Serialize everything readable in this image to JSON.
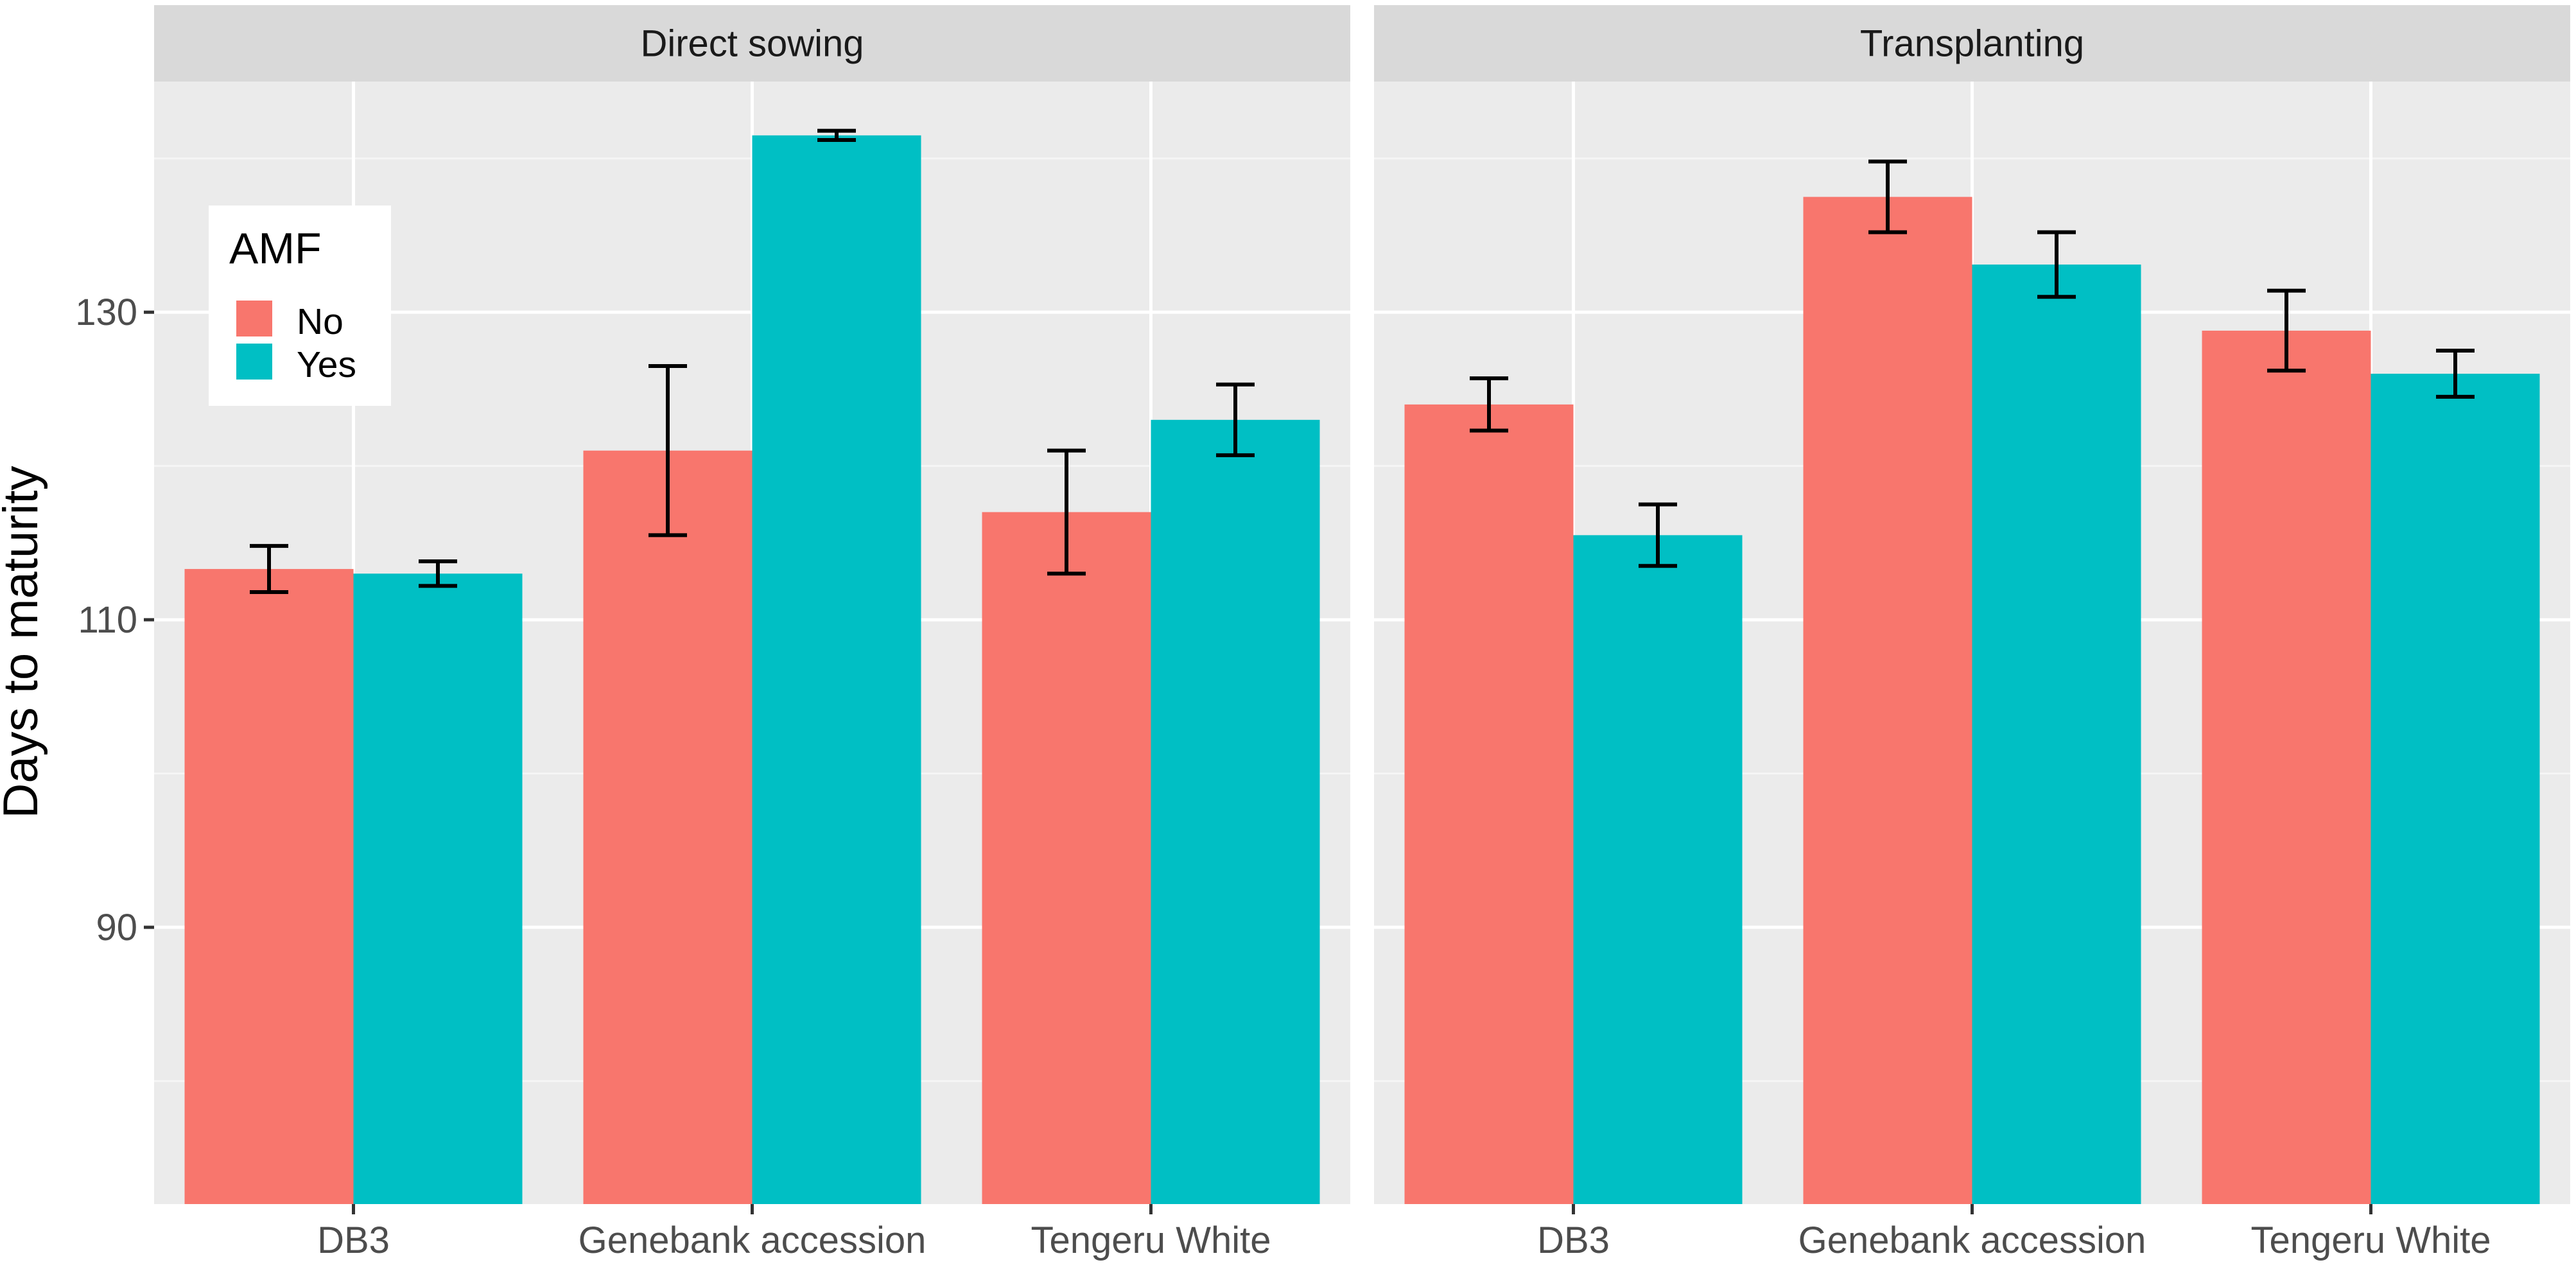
{
  "chart_data": {
    "type": "bar",
    "layout": "faceted",
    "ylabel": "Days to maturity",
    "xlabel": "",
    "ylim": [
      72,
      145
    ],
    "yticks": [
      90,
      110,
      130
    ],
    "categories": [
      "DB3",
      "Genebank accession",
      "Tengeru White"
    ],
    "legend": {
      "title": "AMF",
      "position": "inside top-left",
      "entries": [
        "No",
        "Yes"
      ]
    },
    "colors": {
      "No": "#F8766D",
      "Yes": "#00BFC4"
    },
    "panels": [
      {
        "title": "Direct sowing",
        "series": [
          {
            "name": "No",
            "values": [
              113.3,
              121.0,
              117.0
            ],
            "errors": [
              1.5,
              5.5,
              4.0
            ]
          },
          {
            "name": "Yes",
            "values": [
              113.0,
              141.5,
              123.0
            ],
            "errors": [
              0.8,
              0.3,
              2.3
            ]
          }
        ]
      },
      {
        "title": "Transplanting",
        "series": [
          {
            "name": "No",
            "values": [
              124.0,
              137.5,
              128.8
            ],
            "errors": [
              1.7,
              2.3,
              2.6
            ]
          },
          {
            "name": "Yes",
            "values": [
              115.5,
              133.1,
              126.0
            ],
            "errors": [
              2.0,
              2.1,
              1.5
            ]
          }
        ]
      }
    ]
  }
}
